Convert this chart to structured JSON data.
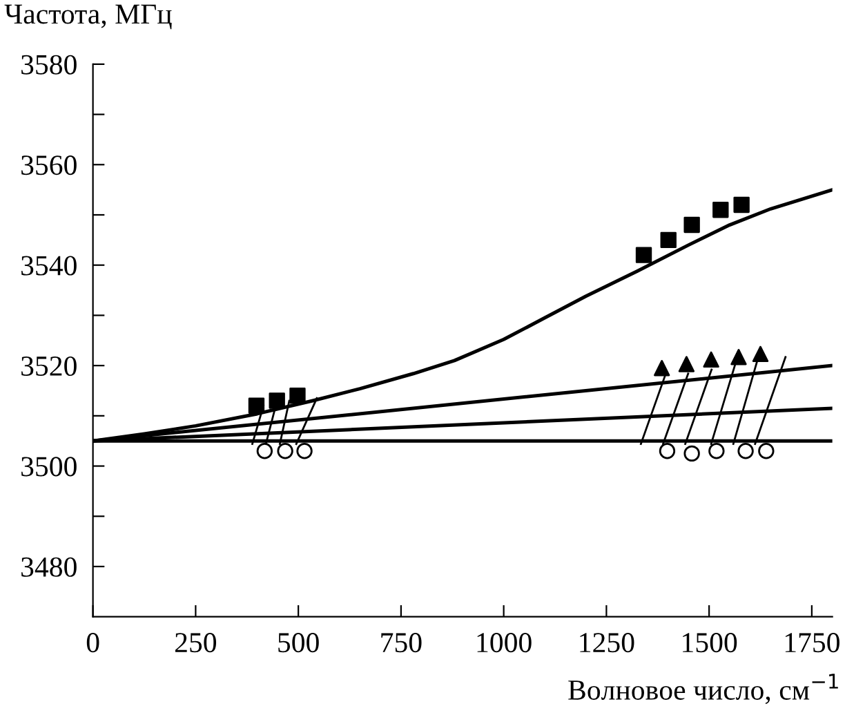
{
  "chart_data": {
    "type": "line",
    "xlabel": "Волновое число, см$^{−1}$",
    "ylabel": "Частота, МГц",
    "xlim": [
      0,
      1800
    ],
    "xticks": [
      0,
      250,
      500,
      750,
      1000,
      1250,
      1500,
      1750
    ],
    "ylim": [
      3470,
      3580
    ],
    "yticks": [
      3480,
      {
        "value": 3490,
        "label": null
      },
      3500,
      {
        "value": 3510,
        "label": null
      },
      3520,
      {
        "value": 3530,
        "label": null
      },
      3540,
      {
        "value": 3550,
        "label": null
      },
      3560,
      {
        "value": 3570,
        "label": null
      },
      3580
    ],
    "grid": false,
    "legend": false,
    "series": [
      {
        "color": "#000000",
        "marker": "none",
        "x": [
          0,
          125,
          250,
          400,
          535,
          650,
          780,
          880,
          1000,
          1100,
          1200,
          1325,
          1450,
          1550,
          1650,
          1800
        ],
        "values": [
          3505,
          3506.4,
          3508,
          3510.4,
          3513,
          3515.4,
          3518.4,
          3521,
          3525.2,
          3529.5,
          3533.8,
          3538.8,
          3544,
          3548,
          3551.2,
          3555
        ]
      },
      {
        "color": "#000000",
        "marker": "none",
        "x": [
          0,
          1800
        ],
        "values": [
          3505,
          3520
        ]
      },
      {
        "color": "#000000",
        "marker": "none",
        "x": [
          0,
          1800
        ],
        "values": [
          3505,
          3511.5
        ]
      },
      {
        "color": "#000000",
        "marker": "none",
        "x": [
          0,
          1800
        ],
        "values": [
          3505,
          3505
        ]
      },
      {
        "type": "scatter",
        "color": "#000000",
        "marker": "square",
        "x": [
          398,
          448,
          498,
          1341,
          1401,
          1458,
          1528,
          1579
        ],
        "values": [
          3512,
          3513,
          3514,
          3542,
          3545,
          3548,
          3551,
          3552
        ]
      },
      {
        "type": "scatter",
        "color": "#000000",
        "marker": "triangle",
        "x": [
          1385,
          1445,
          1505,
          1572,
          1625
        ],
        "values": [
          3519.5,
          3520.3,
          3521.2,
          3521.7,
          3522.3
        ]
      },
      {
        "type": "scatter",
        "color": "#000000",
        "marker": "circle",
        "x": [
          418,
          468,
          515,
          1398,
          1458,
          1518,
          1589,
          1639
        ],
        "values": [
          3503,
          3503,
          3503,
          3503,
          3502.5,
          3503,
          3503,
          3503
        ]
      },
      {
        "type": "line",
        "color": "#000000",
        "marker": "none",
        "x": [
          388,
          415,
          null,
          421,
          445,
          null,
          455,
          478,
          null,
          495,
          545,
          null,
          1334,
          1392,
          null,
          1388,
          1449,
          null,
          1442,
          1506,
          null,
          1505,
          1563,
          null,
          1559,
          1617,
          null,
          1612,
          1686
        ],
        "values": [
          3504.4,
          3512,
          null,
          3504.4,
          3512,
          null,
          3504.4,
          3513,
          null,
          3504.4,
          3513.5,
          null,
          3504.4,
          3517.8,
          null,
          3504.4,
          3518.4,
          null,
          3504.4,
          3519.2,
          null,
          3504.4,
          3520.1,
          null,
          3504.4,
          3520.9,
          null,
          3504.4,
          3521.7
        ]
      }
    ]
  }
}
